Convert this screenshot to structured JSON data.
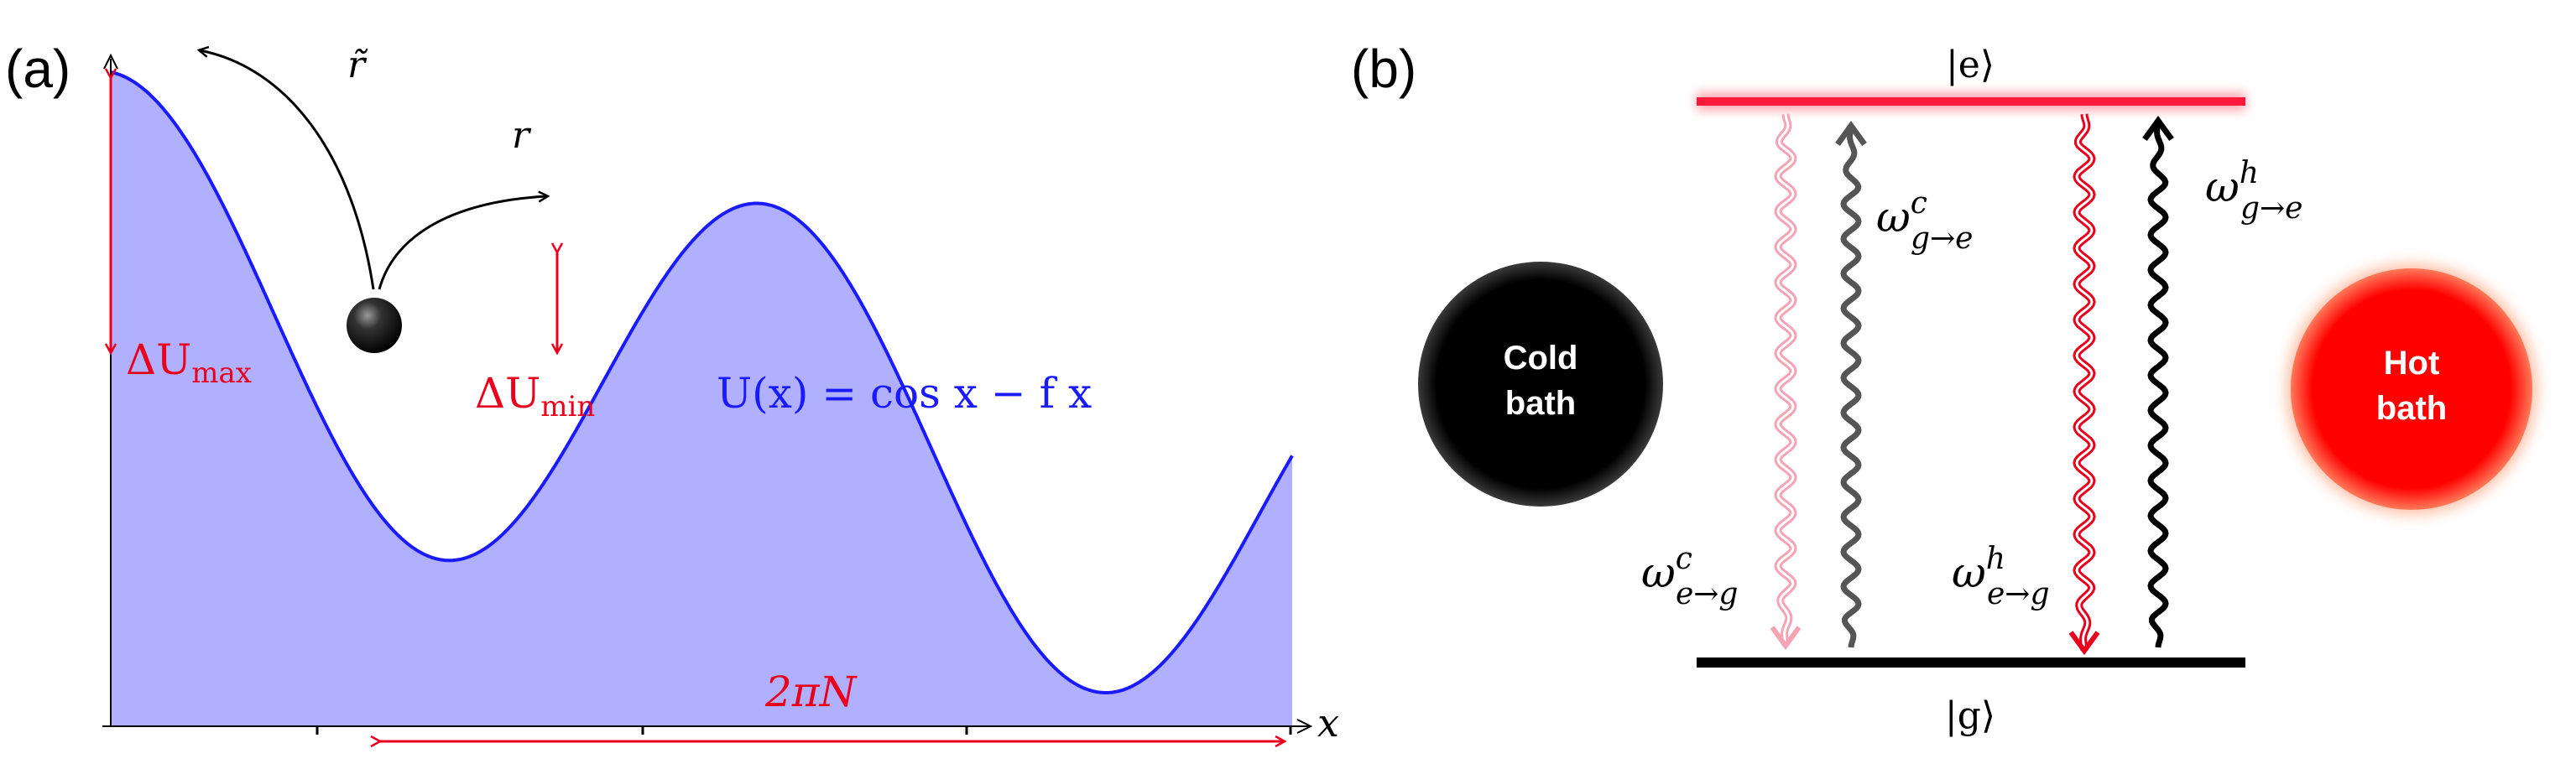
{
  "panel_a": {
    "label": "(a)",
    "x_axis_label": "x",
    "potential_label": "U(x) = cos x − f x",
    "delta_u_max": {
      "symbol": "ΔU",
      "subscript": "max"
    },
    "delta_u_min": {
      "symbol": "ΔU",
      "subscript": "min"
    },
    "rate_backward": "r̃",
    "rate_forward": "r",
    "period_label": "2πN",
    "colors": {
      "curve": "#1a1aff",
      "fill": "#b0b0ff",
      "annotation": "#e8001c"
    }
  },
  "panel_b": {
    "label": "(b)",
    "excited_state": "|e⟩",
    "ground_state": "|g⟩",
    "cold_bath": {
      "line1": "Cold",
      "line2": "bath",
      "color": "#000000"
    },
    "hot_bath": {
      "line1": "Hot",
      "line2": "bath",
      "color": "#ff0000"
    },
    "rates": {
      "cold_down": {
        "base": "ω",
        "sup": "c",
        "sub": "e→g"
      },
      "cold_up": {
        "base": "ω",
        "sup": "c",
        "sub": "g→e"
      },
      "hot_down": {
        "base": "ω",
        "sup": "h",
        "sub": "e→g"
      },
      "hot_up": {
        "base": "ω",
        "sup": "h",
        "sub": "g→e"
      }
    },
    "colors": {
      "excited_level": "#ff1a3c",
      "ground_level": "#000000",
      "cold_down": "#f5a3b5",
      "cold_up": "#555555",
      "hot_down": "#e8001c",
      "hot_up": "#000000"
    }
  }
}
